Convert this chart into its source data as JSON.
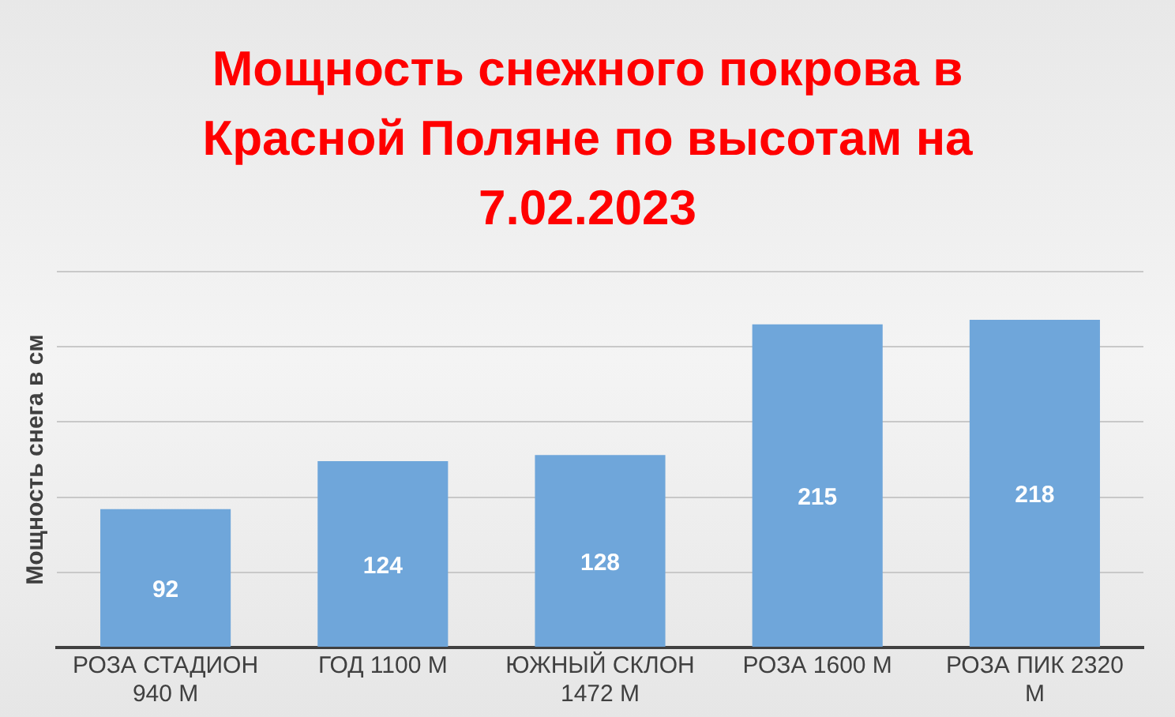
{
  "chart_data": {
    "type": "bar",
    "title": "Мощность снежного покрова в Красной Поляне по высотам на 7.02.2023",
    "ylabel": "Мощность снега в см",
    "categories": [
      "РОЗА СТАДИОН 940 М",
      "ГОД 1100 М",
      "ЮЖНЫЙ СКЛОН 1472 М",
      "РОЗА 1600 М",
      "РОЗА ПИК 2320 М"
    ],
    "values": [
      92,
      124,
      128,
      215,
      218
    ],
    "color": "#6fa6da",
    "ylim": [
      0,
      250
    ],
    "yticks": [
      {
        "value": 0,
        "label": null
      },
      {
        "value": 50,
        "label": null
      },
      {
        "value": 100,
        "label": null
      },
      {
        "value": 150,
        "label": null
      },
      {
        "value": 200,
        "label": null
      },
      {
        "value": 250,
        "label": null
      }
    ],
    "tick_labels": "x",
    "grid": "y",
    "data_labels": true,
    "legend": false
  }
}
